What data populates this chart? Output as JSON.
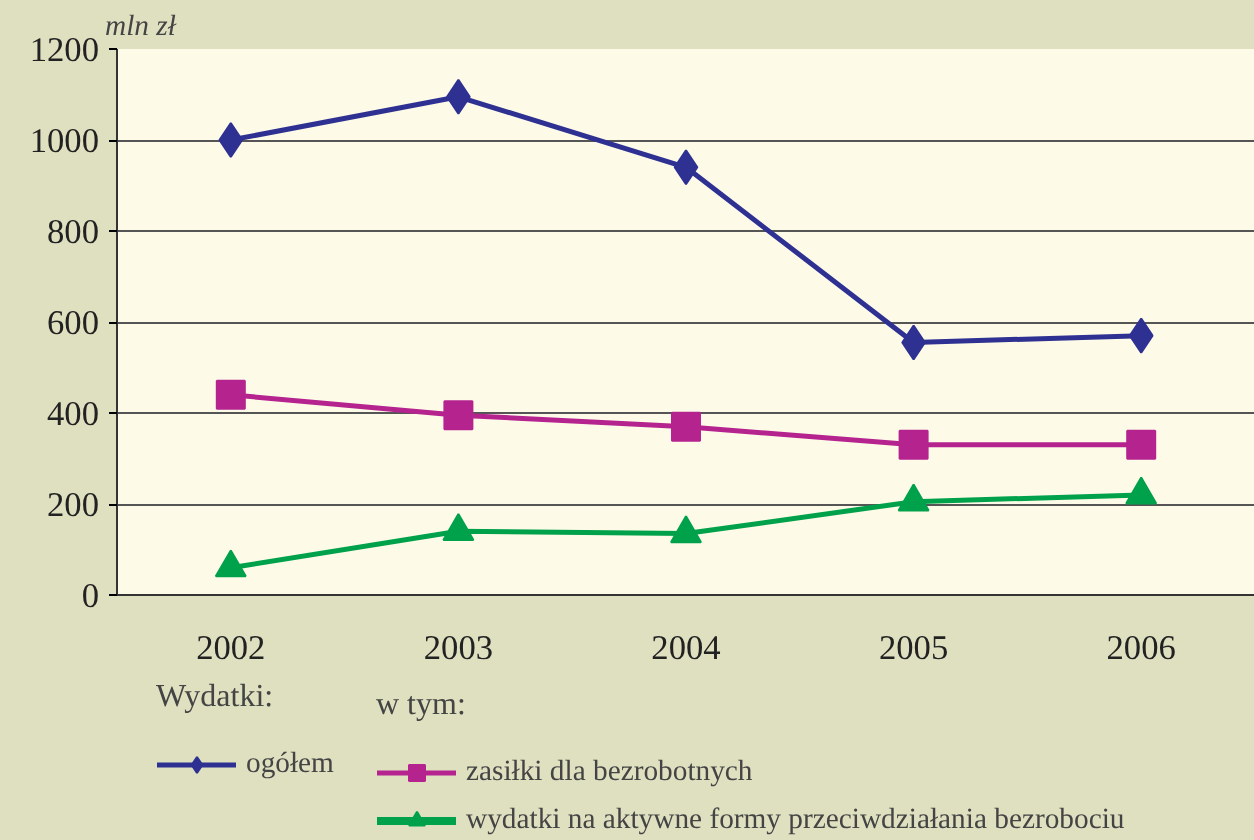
{
  "chart_data": {
    "type": "line",
    "ylabel": "mln zł",
    "categories": [
      "2002",
      "2003",
      "2004",
      "2005",
      "2006"
    ],
    "series": [
      {
        "name": "ogółem",
        "color": "#2e3192",
        "values": [
          1000,
          1095,
          940,
          555,
          570
        ],
        "marker": "diamond"
      },
      {
        "name": "zasiłki dla bezrobotnych",
        "color": "#b5238f",
        "values": [
          440,
          395,
          370,
          330,
          330
        ],
        "marker": "square"
      },
      {
        "name": "wydatki na aktywne formy przeciwdziałania bezrobociu",
        "color": "#00a14b",
        "values": [
          60,
          140,
          135,
          205,
          220
        ],
        "marker": "triangle"
      }
    ],
    "ylim": [
      0,
      1200
    ],
    "yticks": [
      0,
      200,
      400,
      600,
      800,
      1000,
      1200
    ],
    "grid": "y",
    "legend": "bottom",
    "legend_title": "Wydatki:",
    "annotations": [
      "w tym:"
    ]
  }
}
